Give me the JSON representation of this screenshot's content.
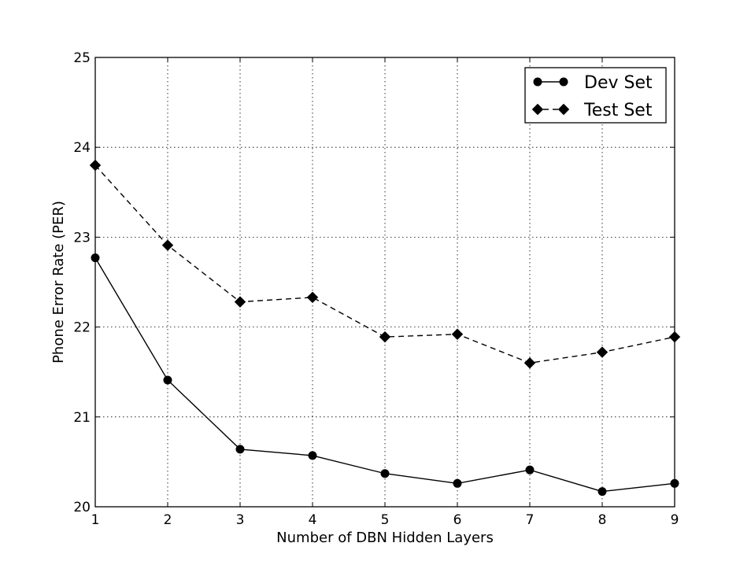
{
  "chart_data": {
    "type": "line",
    "title": "",
    "xlabel": "Number of DBN Hidden Layers",
    "ylabel": "Phone Error Rate (PER)",
    "x": [
      1,
      2,
      3,
      4,
      5,
      6,
      7,
      8,
      9
    ],
    "xlim": [
      1,
      9
    ],
    "ylim": [
      20,
      25
    ],
    "xticks": [
      "1",
      "2",
      "3",
      "4",
      "5",
      "6",
      "7",
      "8",
      "9"
    ],
    "yticks": [
      "20",
      "21",
      "22",
      "23",
      "24",
      "25"
    ],
    "grid": true,
    "legend_position": "top-right",
    "series": [
      {
        "name": "Dev Set",
        "values": [
          22.77,
          21.41,
          20.64,
          20.57,
          20.37,
          20.26,
          20.41,
          20.17,
          20.26
        ],
        "line_style": "solid",
        "marker": "circle",
        "color": "#000000"
      },
      {
        "name": "Test Set",
        "values": [
          23.8,
          22.91,
          22.28,
          22.33,
          21.89,
          21.92,
          21.6,
          21.72,
          21.89
        ],
        "line_style": "dashed",
        "marker": "diamond",
        "color": "#000000"
      }
    ]
  }
}
